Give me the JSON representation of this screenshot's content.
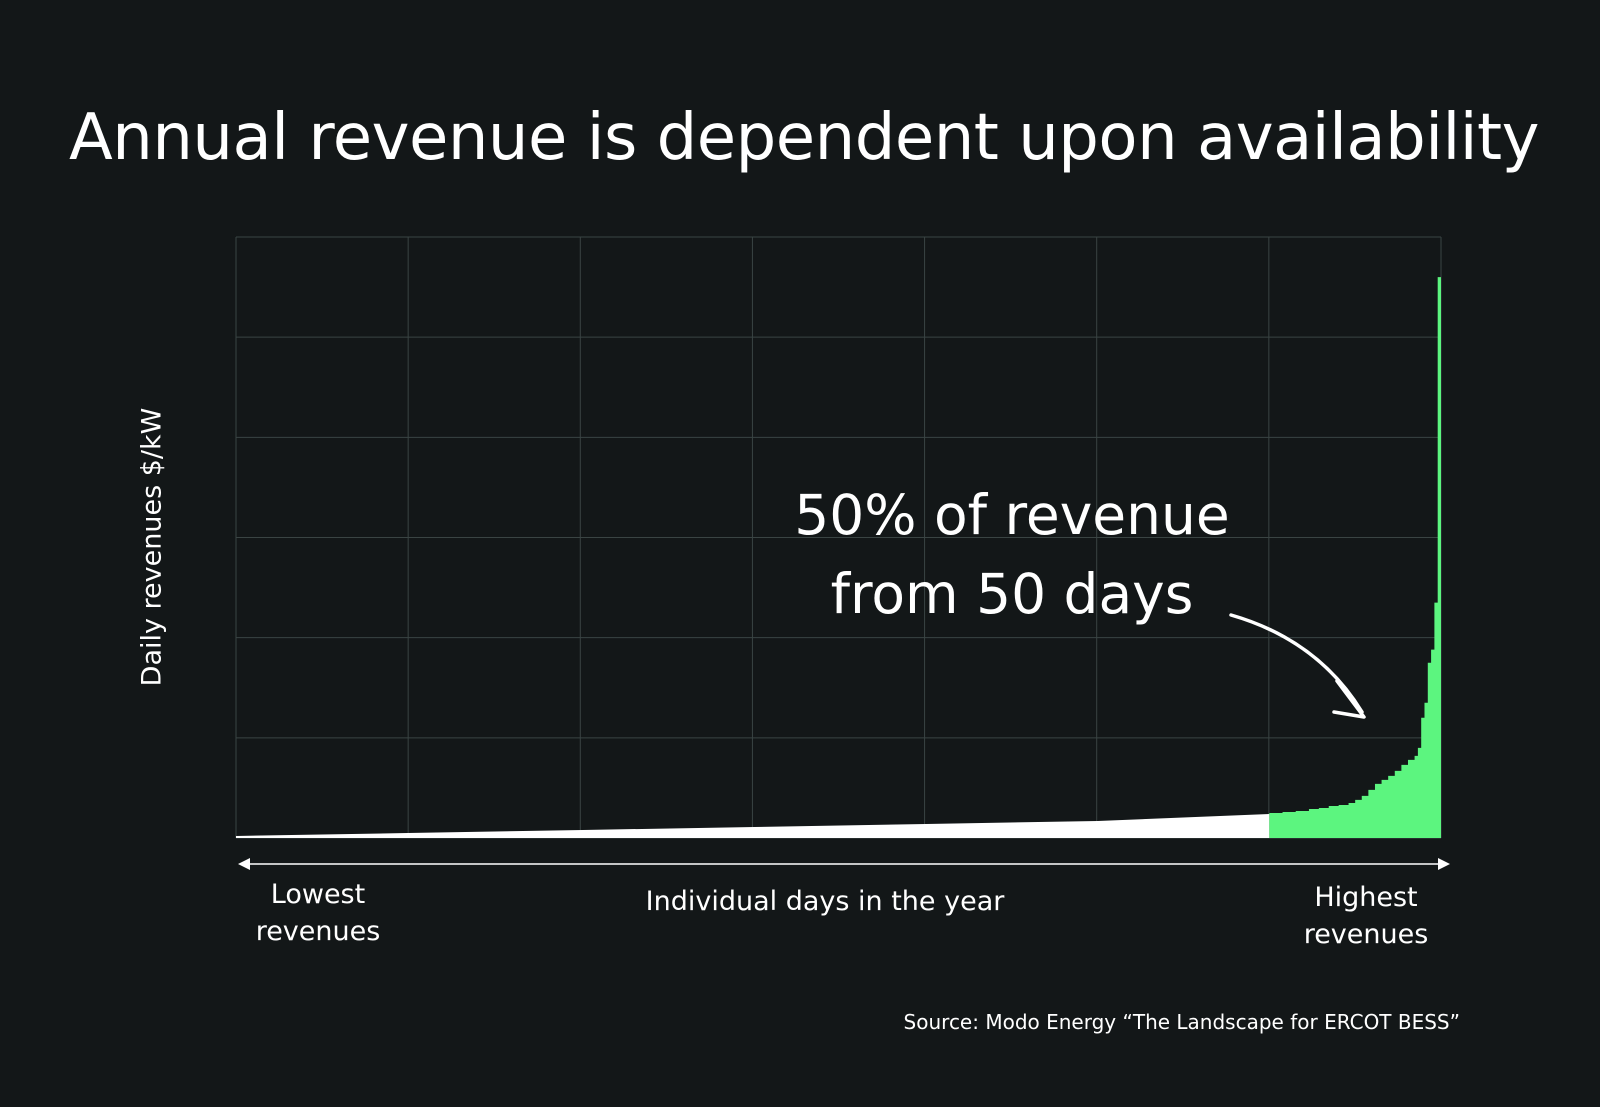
{
  "title": "Annual revenue is dependent upon availability",
  "annotation": {
    "line1": "50% of revenue",
    "line2": "from 50 days"
  },
  "source": "Source: Modo Energy “The Landscape for ERCOT BESS”",
  "colors": {
    "background": "#131718",
    "grid": "#3a4443",
    "low_revenue_area": "#ffffff",
    "top_days_area": "#5cf57f",
    "text": "#ffffff"
  },
  "chart_data": {
    "type": "area",
    "title": "Annual revenue is dependent upon availability",
    "ylabel": "Daily revenues $/kW",
    "xlabel": "Individual days in the year",
    "x_start_label": "Lowest\nrevenues",
    "x_end_label": "Highest\nrevenues",
    "grid": true,
    "y_tick_labels_shown": false,
    "x_tick_labels_shown": false,
    "days": 365,
    "xlim": [
      0,
      365
    ],
    "ylim": [
      0,
      6
    ],
    "series": [
      {
        "segment": "lowest 315 days (sorted ascending)",
        "color_key": "low_revenue_area",
        "x": [
          0,
          52,
          105,
          157,
          209,
          261,
          313
        ],
        "y": [
          0.02,
          0.05,
          0.08,
          0.11,
          0.14,
          0.17,
          0.24
        ]
      },
      {
        "segment": "highest 50 days (sorted ascending)",
        "color_key": "top_days_area",
        "x": [
          313,
          317,
          321,
          325,
          328,
          331,
          334,
          337,
          339,
          341,
          343,
          345,
          347,
          349,
          351,
          353,
          355,
          357,
          358,
          359,
          360,
          361,
          362,
          363,
          364,
          365
        ],
        "y": [
          0.25,
          0.26,
          0.27,
          0.29,
          0.3,
          0.32,
          0.33,
          0.35,
          0.38,
          0.42,
          0.48,
          0.54,
          0.58,
          0.62,
          0.67,
          0.73,
          0.78,
          0.82,
          0.9,
          1.2,
          1.35,
          1.75,
          1.88,
          2.35,
          5.6,
          5.6
        ]
      }
    ],
    "annotations": [
      "50% of revenue from 50 days"
    ]
  }
}
